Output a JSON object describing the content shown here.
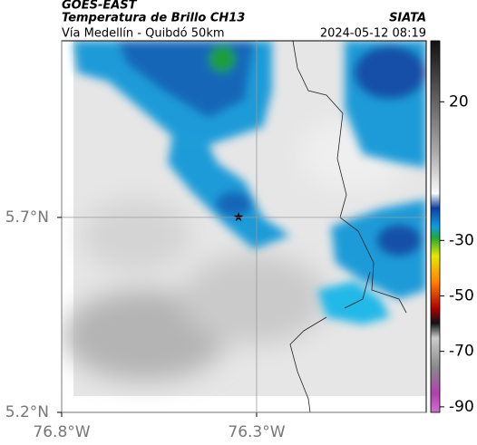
{
  "header": {
    "source": "GOES-EAST",
    "product": "Temperatura de Brillo CH13",
    "org": "SIATA",
    "route": "Vía Medellín - Quibdó 50km",
    "datetime": "2024-05-12 08:19"
  },
  "map": {
    "xlim": [
      -76.8,
      -75.865
    ],
    "ylim": [
      5.2,
      6.153
    ],
    "xticks": [
      {
        "value": -76.8,
        "label": "76.8°W"
      },
      {
        "value": -76.3,
        "label": "76.3°W"
      }
    ],
    "yticks": [
      {
        "value": 5.2,
        "label": "5.2°N"
      },
      {
        "value": 5.7,
        "label": "5.7°N"
      }
    ]
  },
  "colorbar": {
    "lim": [
      -92,
      42
    ],
    "ticks": [
      20,
      -30,
      -50,
      -70,
      -90
    ]
  }
}
